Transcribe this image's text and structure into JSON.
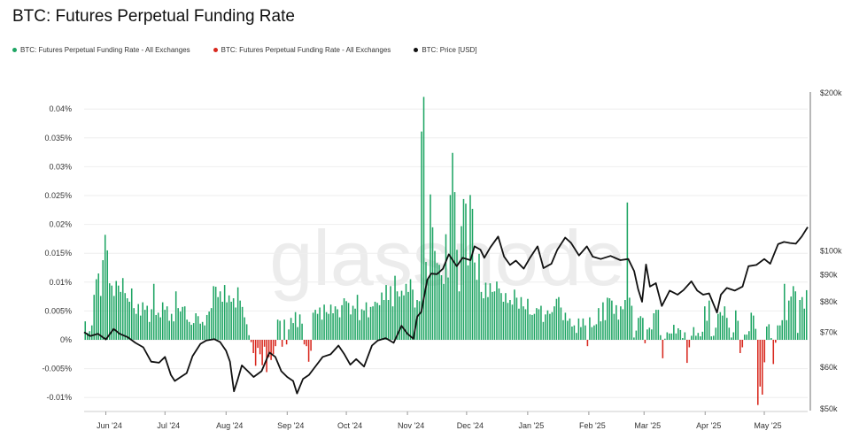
{
  "title": "BTC: Futures Perpetual Funding Rate",
  "watermark": "glassnode",
  "legend": [
    {
      "label": "BTC: Futures Perpetual Funding Rate - All Exchanges",
      "color": "#1fa564"
    },
    {
      "label": "BTC: Futures Perpetual Funding Rate - All Exchanges",
      "color": "#d8281e"
    },
    {
      "label": "BTC: Price [USD]",
      "color": "#111111"
    }
  ],
  "chart_data": {
    "type": "bar",
    "title": "BTC: Futures Perpetual Funding Rate",
    "x_range": [
      "2024-05-21",
      "2025-05-23"
    ],
    "x_ticks": [
      "Jun '24",
      "Jul '24",
      "Aug '24",
      "Sep '24",
      "Oct '24",
      "Nov '24",
      "Dec '24",
      "Jan '25",
      "Feb '25",
      "Mar '25",
      "Apr '25",
      "May '25"
    ],
    "y_left": {
      "range": [
        -0.012,
        0.042
      ],
      "ticks": [
        "-0.01%",
        "-0.005%",
        "0%",
        "0.005%",
        "0.01%",
        "0.015%",
        "0.02%",
        "0.025%",
        "0.03%",
        "0.035%",
        "0.04%"
      ],
      "unit": "%"
    },
    "y_right": {
      "scale": "log",
      "range": [
        50000,
        200000
      ],
      "ticks": [
        "$50k",
        "$60k",
        "$70k",
        "$80k",
        "$90k",
        "$100k",
        "$200k"
      ]
    },
    "grid": true,
    "legend_position": "top-left",
    "series": [
      {
        "name": "BTC: Futures Perpetual Funding Rate - All Exchanges",
        "kind": "bar",
        "axis": "left",
        "colors": {
          "positive": "#1fa564",
          "negative": "#d8281e"
        },
        "values": [
          0.0032,
          0.0012,
          0.0015,
          0.0025,
          0.0078,
          0.0105,
          0.0115,
          0.0076,
          0.0138,
          0.0182,
          0.0155,
          0.0098,
          0.0094,
          0.0076,
          0.0102,
          0.0094,
          0.0083,
          0.0107,
          0.0081,
          0.0072,
          0.0066,
          0.0089,
          0.0055,
          0.0045,
          0.0062,
          0.0042,
          0.0065,
          0.0052,
          0.0059,
          0.0031,
          0.0053,
          0.0097,
          0.0043,
          0.0047,
          0.0039,
          0.0065,
          0.0052,
          0.0058,
          0.0033,
          0.0045,
          0.0032,
          0.0084,
          0.0055,
          0.0049,
          0.0057,
          0.0058,
          0.0035,
          0.0031,
          0.0026,
          0.0029,
          0.0046,
          0.0041,
          0.0028,
          0.0031,
          0.0025,
          0.0043,
          0.0049,
          0.0055,
          0.0093,
          0.0092,
          0.0074,
          0.0084,
          0.0066,
          0.0095,
          0.0065,
          0.0077,
          0.0066,
          0.0072,
          0.0056,
          0.0091,
          0.0068,
          0.0057,
          0.0039,
          0.0027,
          0.0008,
          -0.0004,
          -0.0023,
          -0.0045,
          -0.0014,
          -0.0025,
          -0.0044,
          -0.0012,
          -0.0056,
          -0.003,
          -0.0035,
          -0.0025,
          -0.0011,
          0.0035,
          0.0033,
          -0.0012,
          0.0035,
          -0.0008,
          0.0018,
          0.0038,
          0.0029,
          0.0048,
          0.0022,
          0.0044,
          0.0028,
          -0.0008,
          -0.0011,
          -0.0038,
          -0.0019,
          0.0047,
          0.0052,
          0.0045,
          0.0056,
          0.0035,
          0.0061,
          0.0048,
          0.0045,
          0.0061,
          0.0046,
          0.0058,
          0.0053,
          0.0039,
          0.006,
          0.0072,
          0.0067,
          0.0064,
          0.0044,
          0.0059,
          0.0054,
          0.0078,
          0.0034,
          0.0053,
          0.0051,
          0.0065,
          0.0039,
          0.0057,
          0.0058,
          0.0066,
          0.0064,
          0.006,
          0.0082,
          0.0069,
          0.0095,
          0.0069,
          0.0093,
          0.0058,
          0.0111,
          0.0084,
          0.0075,
          0.0085,
          0.0077,
          0.0097,
          0.0083,
          0.0105,
          0.0087,
          0.0056,
          0.0069,
          0.0067,
          0.0361,
          0.0421,
          0.0135,
          0.0106,
          0.0252,
          0.0195,
          0.0154,
          0.0133,
          0.013,
          0.0112,
          0.0097,
          0.0183,
          0.0108,
          0.0251,
          0.0324,
          0.0256,
          0.0156,
          0.0084,
          0.0197,
          0.0244,
          0.0236,
          0.0129,
          0.0251,
          0.0227,
          0.0134,
          0.0104,
          0.0149,
          0.0083,
          0.0072,
          0.0099,
          0.0074,
          0.0098,
          0.0083,
          0.0084,
          0.0101,
          0.0089,
          0.0081,
          0.0066,
          0.0081,
          0.0064,
          0.0069,
          0.0061,
          0.0087,
          0.0073,
          0.0054,
          0.0074,
          0.0058,
          0.0053,
          0.0071,
          0.0044,
          0.0043,
          0.0045,
          0.0055,
          0.0053,
          0.0059,
          0.0031,
          0.0044,
          0.0051,
          0.0045,
          0.0048,
          0.0058,
          0.0071,
          0.0074,
          0.0056,
          0.0034,
          0.0047,
          0.0033,
          0.0037,
          0.0023,
          0.0025,
          0.0012,
          0.0037,
          0.0022,
          0.0037,
          0.0025,
          -0.0011,
          0.0039,
          0.0022,
          0.0025,
          0.0027,
          0.0055,
          0.0032,
          0.0065,
          0.0034,
          0.0073,
          0.0072,
          0.0068,
          0.0045,
          0.006,
          0.0035,
          0.0058,
          0.0053,
          0.0069,
          0.0238,
          0.0073,
          0.0059,
          0.0004,
          0.0016,
          0.0038,
          0.0041,
          0.0038,
          -0.0006,
          0.0018,
          0.0021,
          0.0018,
          0.0046,
          0.0052,
          0.0052,
          0.0008,
          -0.0032,
          0.0002,
          0.0013,
          0.0011,
          0.0011,
          0.0026,
          0.0011,
          0.002,
          0.0017,
          0.0003,
          0.0013,
          -0.004,
          -0.0013,
          0.0007,
          0.0022,
          0.0007,
          0.0012,
          0.0006,
          0.0014,
          0.0058,
          0.0033,
          0.0068,
          0.0006,
          0.0007,
          0.0021,
          0.0045,
          0.0048,
          0.0042,
          0.0058,
          0.0038,
          0.0021,
          0.0004,
          0.0013,
          0.0051,
          0.0033,
          -0.0023,
          -0.0013,
          0.0009,
          0.0009,
          0.0015,
          0.0047,
          0.0042,
          0.0019,
          -0.0113,
          -0.0081,
          -0.0095,
          -0.0039,
          0.0023,
          0.0027,
          0.0003,
          -0.0042,
          -0.0005,
          0.0025,
          0.0025,
          0.0034,
          0.0097,
          0.0034,
          0.0068,
          0.0075,
          0.0093,
          0.0084,
          0.0012,
          0.0069,
          0.0074,
          0.0054,
          0.0086
        ]
      },
      {
        "name": "BTC: Price [USD]",
        "kind": "line",
        "axis": "right",
        "color": "#111111",
        "points": [
          [
            "2024-05-21",
            70000
          ],
          [
            "2024-05-24",
            68800
          ],
          [
            "2024-05-28",
            69500
          ],
          [
            "2024-06-01",
            67800
          ],
          [
            "2024-06-05",
            71000
          ],
          [
            "2024-06-08",
            69500
          ],
          [
            "2024-06-12",
            68500
          ],
          [
            "2024-06-16",
            66800
          ],
          [
            "2024-06-20",
            65500
          ],
          [
            "2024-06-24",
            61500
          ],
          [
            "2024-06-28",
            61200
          ],
          [
            "2024-07-01",
            62800
          ],
          [
            "2024-07-04",
            58000
          ],
          [
            "2024-07-06",
            56500
          ],
          [
            "2024-07-09",
            57500
          ],
          [
            "2024-07-12",
            58500
          ],
          [
            "2024-07-15",
            63000
          ],
          [
            "2024-07-19",
            66500
          ],
          [
            "2024-07-22",
            67500
          ],
          [
            "2024-07-26",
            67900
          ],
          [
            "2024-07-29",
            67000
          ],
          [
            "2024-08-01",
            64500
          ],
          [
            "2024-08-03",
            61500
          ],
          [
            "2024-08-05",
            54000
          ],
          [
            "2024-08-07",
            57000
          ],
          [
            "2024-08-09",
            60500
          ],
          [
            "2024-08-12",
            59000
          ],
          [
            "2024-08-15",
            57500
          ],
          [
            "2024-08-19",
            59000
          ],
          [
            "2024-08-23",
            64000
          ],
          [
            "2024-08-26",
            62800
          ],
          [
            "2024-08-29",
            59000
          ],
          [
            "2024-09-01",
            57500
          ],
          [
            "2024-09-04",
            56500
          ],
          [
            "2024-09-06",
            53500
          ],
          [
            "2024-09-09",
            57000
          ],
          [
            "2024-09-12",
            58000
          ],
          [
            "2024-09-15",
            60000
          ],
          [
            "2024-09-19",
            62800
          ],
          [
            "2024-09-23",
            63500
          ],
          [
            "2024-09-27",
            66000
          ],
          [
            "2024-09-30",
            63500
          ],
          [
            "2024-10-03",
            60700
          ],
          [
            "2024-10-06",
            62200
          ],
          [
            "2024-10-10",
            60200
          ],
          [
            "2024-10-14",
            66000
          ],
          [
            "2024-10-17",
            67500
          ],
          [
            "2024-10-21",
            68200
          ],
          [
            "2024-10-25",
            66800
          ],
          [
            "2024-10-29",
            72000
          ],
          [
            "2024-11-01",
            69500
          ],
          [
            "2024-11-04",
            68000
          ],
          [
            "2024-11-06",
            75000
          ],
          [
            "2024-11-08",
            76500
          ],
          [
            "2024-11-11",
            88000
          ],
          [
            "2024-11-13",
            90500
          ],
          [
            "2024-11-16",
            90300
          ],
          [
            "2024-11-19",
            92500
          ],
          [
            "2024-11-22",
            98500
          ],
          [
            "2024-11-26",
            93500
          ],
          [
            "2024-11-29",
            97000
          ],
          [
            "2024-12-03",
            96000
          ],
          [
            "2024-12-05",
            102000
          ],
          [
            "2024-12-08",
            100500
          ],
          [
            "2024-12-10",
            97000
          ],
          [
            "2024-12-13",
            101500
          ],
          [
            "2024-12-17",
            106500
          ],
          [
            "2024-12-20",
            97500
          ],
          [
            "2024-12-23",
            94000
          ],
          [
            "2024-12-26",
            95800
          ],
          [
            "2024-12-30",
            92500
          ],
          [
            "2025-01-02",
            96800
          ],
          [
            "2025-01-06",
            102000
          ],
          [
            "2025-01-09",
            92700
          ],
          [
            "2025-01-13",
            94500
          ],
          [
            "2025-01-16",
            100500
          ],
          [
            "2025-01-20",
            106000
          ],
          [
            "2025-01-23",
            103500
          ],
          [
            "2025-01-27",
            98000
          ],
          [
            "2025-01-31",
            102000
          ],
          [
            "2025-02-03",
            97500
          ],
          [
            "2025-02-07",
            96500
          ],
          [
            "2025-02-12",
            97800
          ],
          [
            "2025-02-17",
            96000
          ],
          [
            "2025-02-21",
            96500
          ],
          [
            "2025-02-24",
            91500
          ],
          [
            "2025-02-26",
            84500
          ],
          [
            "2025-02-28",
            80000
          ],
          [
            "2025-03-02",
            94200
          ],
          [
            "2025-03-04",
            85500
          ],
          [
            "2025-03-07",
            86800
          ],
          [
            "2025-03-10",
            78500
          ],
          [
            "2025-03-14",
            84000
          ],
          [
            "2025-03-18",
            82500
          ],
          [
            "2025-03-21",
            84200
          ],
          [
            "2025-03-25",
            87500
          ],
          [
            "2025-03-28",
            84000
          ],
          [
            "2025-03-31",
            82500
          ],
          [
            "2025-04-03",
            83000
          ],
          [
            "2025-04-07",
            76300
          ],
          [
            "2025-04-09",
            82500
          ],
          [
            "2025-04-12",
            85000
          ],
          [
            "2025-04-16",
            84000
          ],
          [
            "2025-04-20",
            85500
          ],
          [
            "2025-04-23",
            93500
          ],
          [
            "2025-04-27",
            94000
          ],
          [
            "2025-05-01",
            96500
          ],
          [
            "2025-05-04",
            94500
          ],
          [
            "2025-05-08",
            103000
          ],
          [
            "2025-05-11",
            104000
          ],
          [
            "2025-05-14",
            103500
          ],
          [
            "2025-05-17",
            103200
          ],
          [
            "2025-05-20",
            106500
          ],
          [
            "2025-05-23",
            111000
          ]
        ]
      }
    ]
  }
}
